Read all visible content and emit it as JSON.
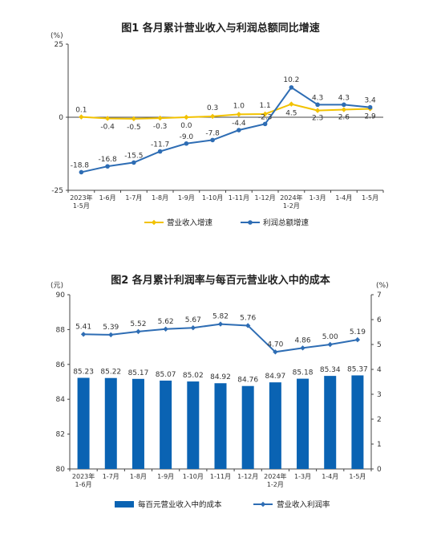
{
  "chart_data": [
    {
      "type": "line",
      "title": "图1  各月累计营业收入与利润总额同比增速",
      "yunit": "(%)",
      "ylim": [
        -25,
        25
      ],
      "yticks": [
        "25",
        "0",
        "-25"
      ],
      "categories": [
        "2023年\n1-5月",
        "1-6月",
        "1-7月",
        "1-8月",
        "1-9月",
        "1-10月",
        "1-11月",
        "1-12月",
        "2024年\n1-2月",
        "1-3月",
        "1-4月",
        "1-5月"
      ],
      "series": [
        {
          "name": "营业收入增速",
          "color": "#f2c200",
          "values": [
            0.1,
            -0.4,
            -0.5,
            -0.3,
            0.0,
            0.3,
            1.0,
            1.1,
            4.5,
            2.3,
            2.6,
            2.9
          ],
          "labels": [
            "0.1",
            "-0.4",
            "-0.5",
            "-0.3",
            "0.0",
            "0.3",
            "1.0",
            "1.1",
            "4.5",
            "2.3",
            "2.6",
            "2.9"
          ]
        },
        {
          "name": "利润总额增速",
          "color": "#2e6db4",
          "values": [
            -18.8,
            -16.8,
            -15.5,
            -11.7,
            -9.0,
            -7.8,
            -4.4,
            -2.3,
            10.2,
            4.3,
            4.3,
            3.4
          ],
          "labels": [
            "-18.8",
            "-16.8",
            "-15.5",
            "-11.7",
            "-9.0",
            "-7.8",
            "-4.4",
            "-2.3",
            "10.2",
            "4.3",
            "4.3",
            "3.4"
          ]
        }
      ],
      "legend": [
        "营业收入增速",
        "利润总额增速"
      ],
      "legend_position": "bottom"
    },
    {
      "type": "bar",
      "title": "图2  各月累计利润率与每百元营业收入中的成本",
      "yunit_left": "(元)",
      "yunit_right": "(%)",
      "ylim": [
        80,
        90
      ],
      "ylim_right": [
        0,
        7
      ],
      "yticks": [
        "90",
        "88",
        "86",
        "84",
        "82",
        "80"
      ],
      "yticks_right": [
        "7",
        "6",
        "5",
        "4",
        "3",
        "2",
        "1",
        "0"
      ],
      "categories": [
        "2023年\n1-6月",
        "1-7月",
        "1-8月",
        "1-9月",
        "1-10月",
        "1-11月",
        "1-12月",
        "2024年\n1-2月",
        "1-3月",
        "1-4月",
        "1-5月"
      ],
      "series": [
        {
          "name": "每百元营业收入中的成本",
          "type": "bar",
          "axis": "left",
          "color": "#0a63b3",
          "values": [
            85.23,
            85.22,
            85.17,
            85.07,
            85.02,
            84.92,
            84.76,
            84.97,
            85.18,
            85.34,
            85.37
          ],
          "labels": [
            "85.23",
            "85.22",
            "85.17",
            "85.07",
            "85.02",
            "84.92",
            "84.76",
            "84.97",
            "85.18",
            "85.34",
            "85.37"
          ]
        },
        {
          "name": "营业收入利润率",
          "type": "line",
          "axis": "right",
          "color": "#2e6db4",
          "values": [
            5.41,
            5.39,
            5.52,
            5.62,
            5.67,
            5.82,
            5.76,
            4.7,
            4.86,
            5.0,
            5.19
          ],
          "labels": [
            "5.41",
            "5.39",
            "5.52",
            "5.62",
            "5.67",
            "5.82",
            "5.76",
            "4.70",
            "4.86",
            "5.00",
            "5.19"
          ]
        }
      ],
      "legend": [
        "每百元营业收入中的成本",
        "营业收入利润率"
      ],
      "legend_position": "bottom"
    }
  ]
}
